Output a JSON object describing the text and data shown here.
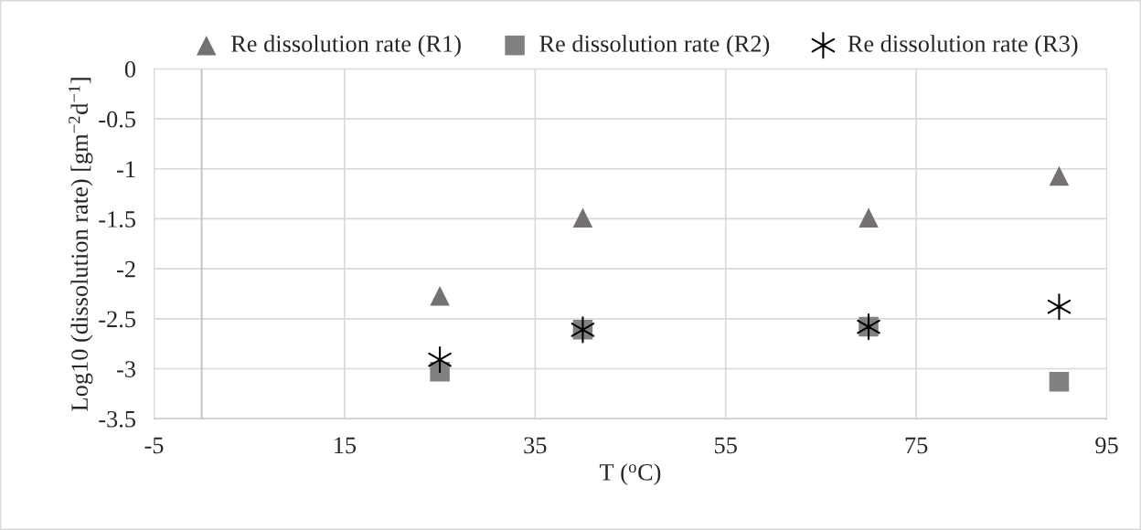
{
  "chart_data": {
    "type": "scatter",
    "xlabel": "T ($^{o}$C)",
    "ylabel": "Log10 (dissolution rate) [gm$^{−2}$d$^{−1}$]",
    "x": [
      25,
      40,
      70,
      90
    ],
    "series": [
      {
        "name": "Re dissolution rate (R1)",
        "color": "#767171",
        "marker": "triangle",
        "values": [
          -2.27,
          -1.49,
          -1.49,
          -1.07
        ]
      },
      {
        "name": "Re dissolution rate (R2)",
        "color": "#808080",
        "marker": "square",
        "values": [
          -3.03,
          -2.61,
          -2.58,
          -3.13
        ]
      },
      {
        "name": "Re dissolution rate (R3)",
        "color": "#000000",
        "marker": "cross",
        "values": [
          -2.91,
          -2.61,
          -2.58,
          -2.38
        ]
      }
    ],
    "xlim": [
      -5,
      95
    ],
    "xticks": [
      -5,
      15,
      35,
      55,
      75,
      95
    ],
    "ylim": [
      -3.5,
      0
    ],
    "yticks": [
      0,
      -0.5,
      -1,
      -1.5,
      -2,
      -2.5,
      -3,
      -3.5
    ],
    "ref_lines": [
      {
        "axis": "x",
        "value": 0,
        "color": "#bfbfbf"
      }
    ],
    "grid": true,
    "legend": "top"
  }
}
